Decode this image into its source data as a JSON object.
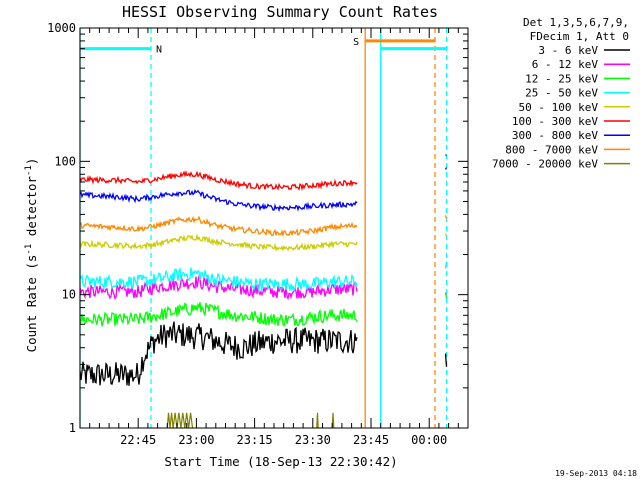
{
  "chart_data": {
    "type": "line",
    "title": "HESSI Observing Summary Count Rates",
    "xlabel": "Start Time (18-Sep-13 22:30:42)",
    "ylabel_prefix": "Count Rate (s",
    "ylabel_sup1": "-1",
    "ylabel_mid": " detector",
    "ylabel_sup2": "-1",
    "ylabel_suffix": ")",
    "y_scale": "log",
    "ylim": [
      1,
      1000
    ],
    "y_ticks": [
      {
        "value": 1,
        "label": "1"
      },
      {
        "value": 10,
        "label": "10"
      },
      {
        "value": 100,
        "label": "100"
      },
      {
        "value": 1000,
        "label": "1000"
      }
    ],
    "xlim": [
      0,
      100
    ],
    "x_tick_labels": [
      {
        "t": 15,
        "label": "22:45"
      },
      {
        "t": 30,
        "label": "23:00"
      },
      {
        "t": 45,
        "label": "23:15"
      },
      {
        "t": 60,
        "label": "23:30"
      },
      {
        "t": 75,
        "label": "23:45"
      },
      {
        "t": 90,
        "label": "00:00"
      }
    ],
    "legend_header": [
      "Det 1,3,5,6,7,9,",
      "FDecim 1, Att 0"
    ],
    "legend_position": "right",
    "footer_date": "19-Sep-2013 04:18",
    "series": [
      {
        "name": "3 - 6 keV",
        "color": "#000000",
        "segments": [
          {
            "x": [
              0,
              8,
              15,
              16.5,
              18,
              19,
              22,
              26,
              32,
              38,
              42,
              46,
              50,
              54,
              58,
              62,
              66,
              70,
              71.5
            ],
            "y": [
              2.5,
              2.5,
              2.5,
              3.5,
              4.0,
              4.5,
              5.0,
              5.0,
              4.8,
              4.2,
              4.0,
              4.3,
              4.5,
              4.5,
              4.5,
              4.5,
              4.5,
              4.5,
              4.5
            ]
          },
          {
            "x": [
              94.2,
              94.6
            ],
            "y": [
              3.5,
              3.4
            ]
          }
        ]
      },
      {
        "name": "6 - 12 keV",
        "color": "#ff00ff",
        "segments": [
          {
            "x": [
              0,
              10,
              15,
              20,
              25,
              30,
              35,
              40,
              45,
              50,
              55,
              60,
              65,
              71.5
            ],
            "y": [
              10.5,
              10.5,
              10.5,
              11.5,
              12.0,
              12.5,
              11.5,
              11.0,
              10.8,
              10.5,
              10.5,
              10.5,
              11.0,
              11.0
            ]
          },
          {
            "x": [
              94.2,
              94.6
            ],
            "y": [
              11.0,
              10.5
            ]
          }
        ]
      },
      {
        "name": "12 - 25 keV",
        "color": "#00ff00",
        "segments": [
          {
            "x": [
              0,
              10,
              15,
              20,
              25,
              30,
              35,
              40,
              45,
              50,
              55,
              60,
              65,
              71.5
            ],
            "y": [
              6.5,
              6.5,
              6.5,
              7.0,
              7.5,
              8.0,
              7.5,
              7.0,
              6.8,
              6.5,
              6.5,
              6.8,
              7.0,
              7.0
            ]
          },
          {
            "x": [
              94.2,
              94.6
            ],
            "y": [
              10.5,
              9.5
            ]
          }
        ]
      },
      {
        "name": "25 - 50 keV",
        "color": "#00ffff",
        "segments": [
          {
            "x": [
              0,
              10,
              15,
              20,
              25,
              30,
              35,
              40,
              45,
              50,
              55,
              60,
              65,
              71.5
            ],
            "y": [
              12.5,
              12.5,
              12.5,
              13.0,
              14.0,
              14.5,
              13.0,
              12.5,
              12.0,
              12.0,
              12.0,
              12.0,
              12.5,
              12.5
            ]
          },
          {
            "x": [
              94.2,
              94.6
            ],
            "y": [
              17.0,
              16.0
            ]
          }
        ]
      },
      {
        "name": "50 - 100 keV",
        "color": "#cccc00",
        "segments": [
          {
            "x": [
              0,
              10,
              15,
              20,
              25,
              30,
              35,
              40,
              45,
              50,
              55,
              60,
              65,
              71.5
            ],
            "y": [
              24.0,
              23.5,
              23.0,
              24.0,
              26.0,
              27.0,
              25.0,
              24.0,
              23.0,
              22.5,
              22.5,
              23.0,
              24.0,
              24.0
            ]
          },
          {
            "x": [
              94.2,
              94.6
            ],
            "y": [
              28.0,
              26.0
            ]
          }
        ]
      },
      {
        "name": "100 - 300 keV",
        "color": "#ff0000",
        "segments": [
          {
            "x": [
              0,
              10,
              15,
              20,
              25,
              30,
              35,
              40,
              45,
              50,
              55,
              60,
              65,
              71.5
            ],
            "y": [
              73.0,
              72.0,
              70.0,
              74.0,
              79.0,
              80.0,
              73.0,
              68.0,
              65.0,
              64.0,
              64.0,
              66.0,
              68.0,
              70.0
            ]
          },
          {
            "x": [
              94.2,
              94.6
            ],
            "y": [
              110.0,
              105.0
            ]
          }
        ]
      },
      {
        "name": "300 - 800 keV",
        "color": "#0000ff",
        "segments": [
          {
            "x": [
              0,
              10,
              15,
              20,
              25,
              30,
              35,
              40,
              45,
              50,
              55,
              60,
              65,
              71.5
            ],
            "y": [
              56.0,
              54.0,
              52.0,
              55.0,
              58.0,
              58.0,
              52.0,
              48.0,
              46.0,
              45.0,
              45.0,
              46.0,
              47.0,
              48.0
            ]
          },
          {
            "x": [
              94.2,
              94.6
            ],
            "y": [
              90.0,
              86.0
            ]
          }
        ]
      },
      {
        "name": "800 - 7000 keV",
        "color": "#ff8800",
        "segments": [
          {
            "x": [
              0,
              10,
              15,
              20,
              25,
              30,
              35,
              40,
              45,
              50,
              55,
              60,
              65,
              71.5
            ],
            "y": [
              33.0,
              32.0,
              31.0,
              33.0,
              36.0,
              37.0,
              33.0,
              31.0,
              30.0,
              29.0,
              29.0,
              30.0,
              32.0,
              33.0
            ]
          },
          {
            "x": [
              94.2,
              94.6
            ],
            "y": [
              40.0,
              38.0
            ]
          }
        ]
      },
      {
        "name": "7000 - 20000 keV",
        "color": "#808000",
        "segments": [
          {
            "x": [
              22.5,
              22.8,
              23.2,
              23.6,
              24.0,
              24.5,
              25.0,
              25.5,
              26.0,
              26.5,
              27.0,
              27.5,
              28.0,
              28.5,
              29.0
            ],
            "y": [
              1.0,
              1.3,
              1.0,
              1.3,
              1.0,
              1.3,
              1.0,
              1.3,
              1.0,
              1.3,
              1.0,
              1.3,
              1.0,
              1.3,
              1.0
            ]
          },
          {
            "x": [
              61.0,
              61.2,
              61.4
            ],
            "y": [
              1.0,
              1.3,
              1.0
            ]
          },
          {
            "x": [
              65.0,
              65.2,
              65.4
            ],
            "y": [
              1.0,
              1.3,
              1.0
            ]
          }
        ]
      }
    ],
    "flag_lines": [
      {
        "label": "N",
        "color": "#00ffff",
        "level": 700,
        "x_from": 0,
        "x_to": 18.3
      },
      {
        "label": "",
        "color": "#00ffff",
        "level": 700,
        "x_from": 77.5,
        "x_to": 94.5
      },
      {
        "label": "S",
        "color": "#ff8800",
        "level": 800,
        "x_from": 73.5,
        "x_to": 91.5
      }
    ],
    "vertical_markers": [
      {
        "t": 0,
        "color": "#00ffff",
        "style": "solid"
      },
      {
        "t": 18.3,
        "color": "#00ffff",
        "style": "dashed"
      },
      {
        "t": 73.5,
        "color": "#ff8800",
        "style": "solid"
      },
      {
        "t": 77.5,
        "color": "#00ffff",
        "style": "solid"
      },
      {
        "t": 91.5,
        "color": "#ff8800",
        "style": "dashed"
      },
      {
        "t": 94.5,
        "color": "#00ffff",
        "style": "dashed"
      }
    ]
  }
}
